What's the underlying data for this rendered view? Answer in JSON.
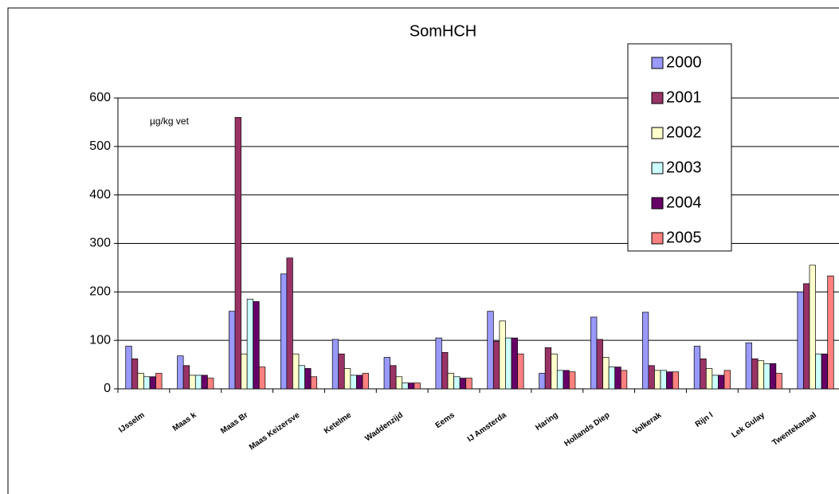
{
  "chart_data": {
    "type": "bar",
    "title": "SomHCH",
    "annotation": "µg/kg vet",
    "categories": [
      "IJsselm",
      "Maas k",
      "Maas Br",
      "Maas Keizersve",
      "Ketelme",
      "Waddenzijd",
      "Eems",
      "IJ Amsterda",
      "Haring",
      "Hollands Diep",
      "Volkerak",
      "Rijn l",
      "Lek Gulay",
      "Twentekanaal"
    ],
    "series": [
      {
        "name": "2000",
        "color": "#9999ff",
        "values": [
          88,
          68,
          160,
          237,
          102,
          65,
          105,
          160,
          32,
          148,
          158,
          88,
          95,
          200
        ]
      },
      {
        "name": "2001",
        "color": "#993366",
        "values": [
          62,
          48,
          560,
          270,
          72,
          48,
          75,
          98,
          85,
          102,
          48,
          62,
          62,
          217
        ]
      },
      {
        "name": "2002",
        "color": "#ffffcc",
        "values": [
          32,
          28,
          72,
          72,
          42,
          25,
          32,
          140,
          72,
          65,
          38,
          42,
          58,
          255
        ]
      },
      {
        "name": "2003",
        "color": "#ccffff",
        "values": [
          25,
          28,
          185,
          48,
          28,
          12,
          25,
          105,
          38,
          45,
          38,
          28,
          52,
          72
        ]
      },
      {
        "name": "2004",
        "color": "#660066",
        "values": [
          25,
          28,
          180,
          42,
          28,
          12,
          22,
          105,
          38,
          45,
          35,
          28,
          52,
          72
        ]
      },
      {
        "name": "2005",
        "color": "#ff8080",
        "values": [
          32,
          22,
          45,
          25,
          32,
          12,
          22,
          72,
          35,
          38,
          35,
          38,
          32,
          233
        ]
      }
    ],
    "ylim": [
      0,
      600
    ],
    "yticks": [
      0,
      100,
      200,
      300,
      400,
      500,
      600
    ],
    "grid": true,
    "legend_position": "upper right"
  }
}
